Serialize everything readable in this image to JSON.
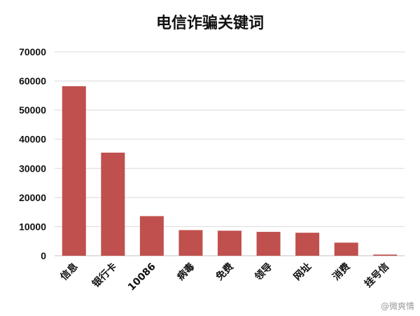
{
  "chart_data": {
    "type": "bar",
    "title": "电信诈骗关键词",
    "xlabel": "",
    "ylabel": "",
    "categories": [
      "信息",
      "银行卡",
      "10086",
      "病毒",
      "免费",
      "领导",
      "网址",
      "消费",
      "挂号信"
    ],
    "values": [
      58200,
      35400,
      13600,
      8800,
      8600,
      8200,
      7900,
      4500,
      400
    ],
    "ylim": [
      0,
      70000
    ],
    "yticks": [
      0,
      10000,
      20000,
      30000,
      40000,
      50000,
      60000,
      70000
    ],
    "grid": true,
    "legend": "none",
    "bar_color": "#c0504d"
  },
  "watermark": "@微爽情"
}
